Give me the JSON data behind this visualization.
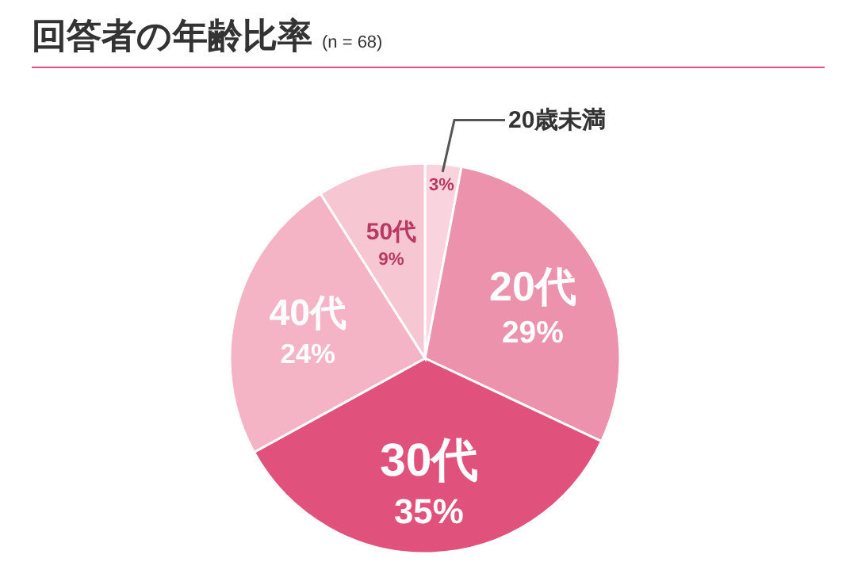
{
  "chart_data": {
    "type": "pie",
    "title": "回答者の年齢比率",
    "subtitle": "(n = 68)",
    "categories": [
      "20歳未満",
      "20代",
      "30代",
      "40代",
      "50代"
    ],
    "values": [
      3,
      29,
      35,
      24,
      9
    ],
    "colors": [
      "#f9d3dd",
      "#ec92ad",
      "#e0517b",
      "#f4b4c6",
      "#f7c6d3"
    ],
    "value_labels": [
      "3%",
      "29%",
      "35%",
      "24%",
      "9%"
    ]
  }
}
